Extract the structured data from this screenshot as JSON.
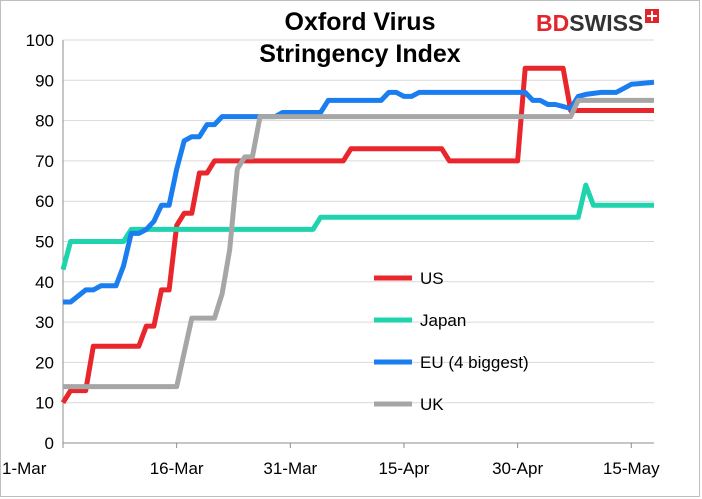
{
  "header": {
    "title_line1": "Oxford Virus",
    "title_line2": "Stringency Index",
    "logo_bd": "BD",
    "logo_swiss": "SWISS"
  },
  "chart_data": {
    "type": "line",
    "title": "Oxford Virus Stringency Index",
    "xlabel": "",
    "ylabel": "",
    "ylim": [
      0,
      100
    ],
    "yticks": [
      "0",
      "10",
      "20",
      "30",
      "40",
      "50",
      "60",
      "70",
      "80",
      "90",
      "100"
    ],
    "xticks": [
      {
        "label": "1-Mar",
        "day": 0
      },
      {
        "label": "16-Mar",
        "day": 15
      },
      {
        "label": "31-Mar",
        "day": 30
      },
      {
        "label": "15-Apr",
        "day": 45
      },
      {
        "label": "30-Apr",
        "day": 60
      },
      {
        "label": "15-May",
        "day": 75
      }
    ],
    "xlim": [
      0,
      78
    ],
    "grid": "horizontal",
    "legend_position": "center-right",
    "series": [
      {
        "name": "US",
        "color": "#e8262b",
        "points": [
          [
            0,
            10
          ],
          [
            1,
            13
          ],
          [
            3,
            13
          ],
          [
            4,
            24
          ],
          [
            10,
            24
          ],
          [
            11,
            29
          ],
          [
            12,
            29
          ],
          [
            13,
            38
          ],
          [
            14,
            38
          ],
          [
            15,
            54
          ],
          [
            16,
            57
          ],
          [
            17,
            57
          ],
          [
            18,
            67
          ],
          [
            19,
            67
          ],
          [
            20,
            70
          ],
          [
            37,
            70
          ],
          [
            38,
            73
          ],
          [
            50,
            73
          ],
          [
            51,
            70
          ],
          [
            60,
            70
          ],
          [
            61,
            93
          ],
          [
            66,
            93
          ],
          [
            67,
            82.5
          ],
          [
            78,
            82.5
          ]
        ]
      },
      {
        "name": "Japan",
        "color": "#1fd3ad",
        "points": [
          [
            0,
            43
          ],
          [
            1,
            50
          ],
          [
            8,
            50
          ],
          [
            9,
            53
          ],
          [
            33,
            53
          ],
          [
            34,
            56
          ],
          [
            68,
            56
          ],
          [
            69,
            64
          ],
          [
            70,
            59
          ],
          [
            78,
            59
          ]
        ]
      },
      {
        "name": "EU (4 biggest)",
        "color": "#1a7ef0",
        "points": [
          [
            0,
            35
          ],
          [
            1,
            35
          ],
          [
            3,
            38
          ],
          [
            4,
            38
          ],
          [
            5,
            39
          ],
          [
            7,
            39
          ],
          [
            8,
            44
          ],
          [
            9,
            52
          ],
          [
            10,
            52
          ],
          [
            11,
            53
          ],
          [
            12,
            55
          ],
          [
            13,
            59
          ],
          [
            14,
            59
          ],
          [
            15,
            68
          ],
          [
            16,
            75
          ],
          [
            17,
            76
          ],
          [
            18,
            76
          ],
          [
            19,
            79
          ],
          [
            20,
            79
          ],
          [
            21,
            81
          ],
          [
            28,
            81
          ],
          [
            29,
            82
          ],
          [
            34,
            82
          ],
          [
            35,
            85
          ],
          [
            42,
            85
          ],
          [
            43,
            87
          ],
          [
            44,
            87
          ],
          [
            45,
            86
          ],
          [
            46,
            86
          ],
          [
            47,
            87
          ],
          [
            61,
            87
          ],
          [
            62,
            85
          ],
          [
            63,
            85
          ],
          [
            64,
            84
          ],
          [
            65,
            84
          ],
          [
            67,
            83
          ],
          [
            68,
            86
          ],
          [
            69,
            86.5
          ],
          [
            71,
            87
          ],
          [
            73,
            87
          ],
          [
            74,
            88
          ],
          [
            75,
            89
          ],
          [
            78,
            89.5
          ]
        ]
      },
      {
        "name": "UK",
        "color": "#a6a6a6",
        "points": [
          [
            0,
            14
          ],
          [
            15,
            14
          ],
          [
            17,
            31
          ],
          [
            20,
            31
          ],
          [
            21,
            37
          ],
          [
            22,
            48
          ],
          [
            23,
            68
          ],
          [
            24,
            71
          ],
          [
            25,
            71
          ],
          [
            26,
            81
          ],
          [
            67,
            81
          ],
          [
            68,
            85
          ],
          [
            78,
            85
          ]
        ]
      }
    ]
  }
}
